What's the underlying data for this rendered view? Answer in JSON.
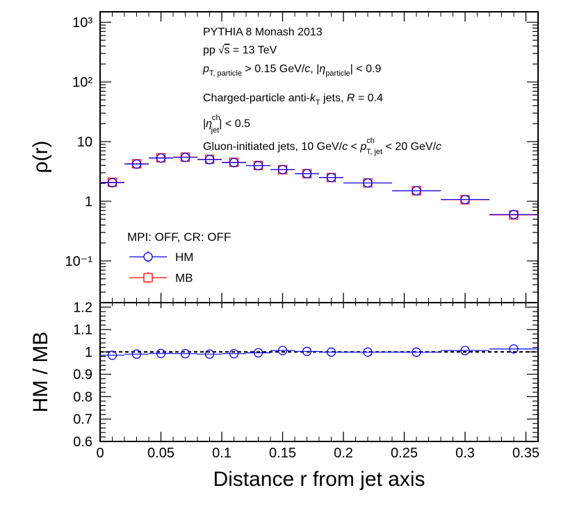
{
  "chart_data": {
    "type": "scatter",
    "title": "",
    "xlabel": "Distance r from jet axis",
    "x_ticks": [
      "0",
      "0.05",
      "0.1",
      "0.15",
      "0.2",
      "0.25",
      "0.3",
      "0.35"
    ],
    "xlim": [
      0,
      0.36
    ],
    "annotations": [
      "PYTHIA 8 Monash 2013",
      "pp √s = 13 TeV",
      "pT, particle > 0.15 GeV/c, |ηparticle| < 0.9",
      "Charged-particle anti-kT jets, R = 0.4",
      "|ηjetch| < 0.5",
      "Gluon-initiated jets, 10 GeV/c < pT, jetch < 20 GeV/c"
    ],
    "top_panel": {
      "ylabel": "ρ(r)",
      "yscale": "log",
      "ylim": [
        0.02,
        1500
      ],
      "y_ticks": [
        "10⁻¹",
        "1",
        "10",
        "10²",
        "10³"
      ],
      "legend_header": "MPI: OFF, CR: OFF",
      "legend_position": "bottom-left",
      "series": [
        {
          "name": "HM",
          "color": "#0000ff",
          "marker": "open-circle",
          "x": [
            0.01,
            0.03,
            0.05,
            0.07,
            0.09,
            0.11,
            0.13,
            0.15,
            0.17,
            0.19,
            0.22,
            0.26,
            0.3,
            0.34
          ],
          "x_halfwidths": [
            0.01,
            0.01,
            0.01,
            0.01,
            0.01,
            0.01,
            0.01,
            0.01,
            0.01,
            0.01,
            0.02,
            0.02,
            0.02,
            0.02
          ],
          "values": [
            2.05,
            4.2,
            5.3,
            5.45,
            5.0,
            4.45,
            3.95,
            3.4,
            2.9,
            2.5,
            2.03,
            1.5,
            1.07,
            0.6
          ]
        },
        {
          "name": "MB",
          "color": "#ff0000",
          "marker": "open-square",
          "x": [
            0.01,
            0.03,
            0.05,
            0.07,
            0.09,
            0.11,
            0.13,
            0.15,
            0.17,
            0.19,
            0.22,
            0.26,
            0.3,
            0.34
          ],
          "x_halfwidths": [
            0.01,
            0.01,
            0.01,
            0.01,
            0.01,
            0.01,
            0.01,
            0.01,
            0.01,
            0.01,
            0.02,
            0.02,
            0.02,
            0.02
          ],
          "values": [
            2.08,
            4.25,
            5.35,
            5.5,
            5.05,
            4.5,
            3.98,
            3.38,
            2.9,
            2.5,
            2.03,
            1.5,
            1.06,
            0.59
          ]
        }
      ]
    },
    "bottom_panel": {
      "ylabel": "HM / MB",
      "ylim": [
        0.6,
        1.22
      ],
      "y_ticks": [
        "0.6",
        "0.7",
        "0.8",
        "0.9",
        "1",
        "1.1",
        "1.2"
      ],
      "reference_line": 1.0,
      "series": [
        {
          "name": "HM / MB",
          "color": "#0000ff",
          "marker": "open-circle",
          "x": [
            0.01,
            0.03,
            0.05,
            0.07,
            0.09,
            0.11,
            0.13,
            0.15,
            0.17,
            0.19,
            0.22,
            0.26,
            0.3,
            0.34
          ],
          "x_halfwidths": [
            0.01,
            0.01,
            0.01,
            0.01,
            0.01,
            0.01,
            0.01,
            0.01,
            0.01,
            0.01,
            0.02,
            0.02,
            0.02,
            0.02
          ],
          "values": [
            0.985,
            0.99,
            0.993,
            0.992,
            0.99,
            0.992,
            0.996,
            1.006,
            1.002,
            0.999,
            0.999,
            0.999,
            1.006,
            1.013
          ]
        }
      ]
    }
  }
}
